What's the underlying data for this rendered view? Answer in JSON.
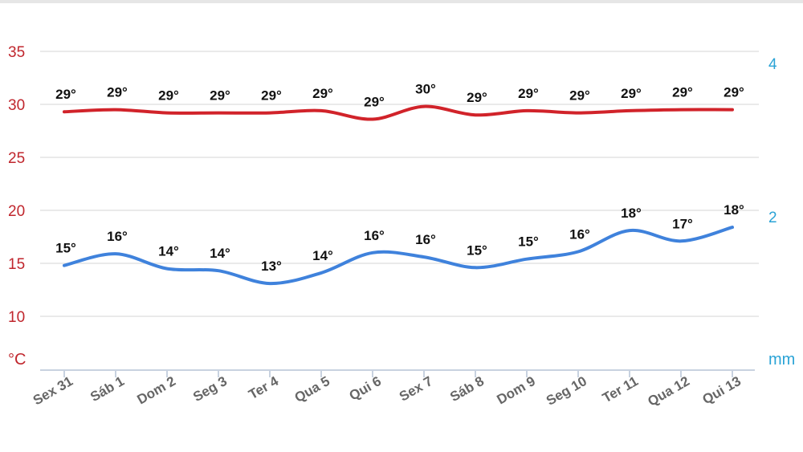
{
  "chart_data": {
    "type": "line",
    "categories": [
      "Sex 31",
      "Sáb 1",
      "Dom 2",
      "Seg 3",
      "Ter 4",
      "Qua 5",
      "Qui 6",
      "Sex 7",
      "Sáb 8",
      "Dom 9",
      "Seg 10",
      "Ter 11",
      "Qua 12",
      "Qui 13"
    ],
    "series": [
      {
        "values": [
          29.3,
          29.5,
          29.2,
          29.2,
          29.2,
          29.4,
          28.6,
          29.8,
          29.0,
          29.4,
          29.2,
          29.4,
          29.5,
          29.5
        ],
        "labels": [
          "29°",
          "29°",
          "29°",
          "29°",
          "29°",
          "29°",
          "29°",
          "30°",
          "29°",
          "29°",
          "29°",
          "29°",
          "29°",
          "29°"
        ],
        "color": "#d1232a"
      },
      {
        "values": [
          14.8,
          15.9,
          14.5,
          14.3,
          13.1,
          14.1,
          16.0,
          15.6,
          14.6,
          15.4,
          16.1,
          18.1,
          17.1,
          18.4
        ],
        "labels": [
          "15°",
          "16°",
          "14°",
          "14°",
          "13°",
          "14°",
          "16°",
          "16°",
          "15°",
          "15°",
          "16°",
          "18°",
          "17°",
          "18°"
        ],
        "color": "#3f82dc"
      }
    ],
    "y_left": {
      "ticks": [
        "35",
        "30",
        "25",
        "20",
        "15",
        "10"
      ],
      "range": [
        5,
        35
      ],
      "unit": "°C",
      "color": "#c0262d"
    },
    "y_right": {
      "ticks": [
        "4",
        "2"
      ],
      "unit": "mm",
      "color": "#2aa3d6"
    },
    "grid": true,
    "gridColor": "#e4e4e4"
  }
}
